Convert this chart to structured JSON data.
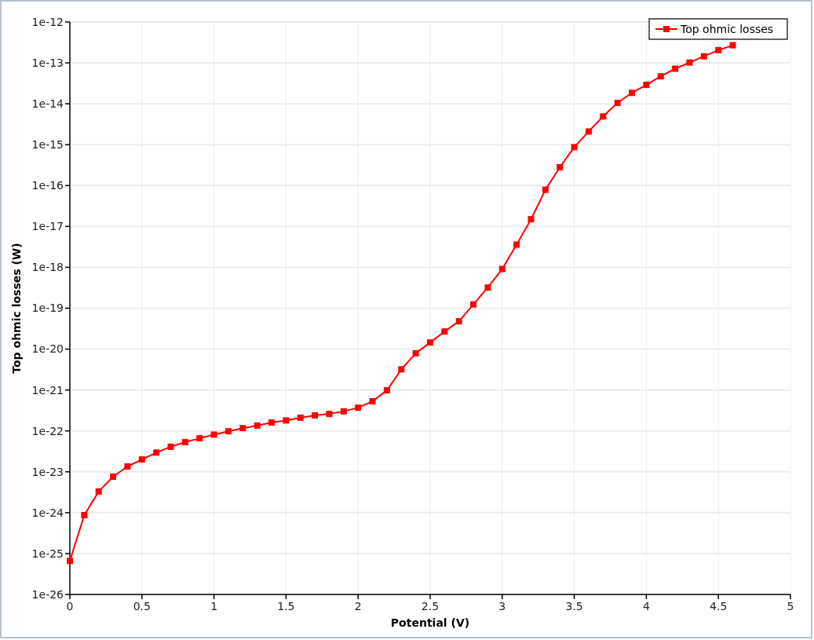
{
  "chart_data": {
    "type": "line",
    "xlabel": "Potential (V)",
    "ylabel": "Top ohmic losses (W)",
    "x": [
      0,
      0.1,
      0.2,
      0.3,
      0.4,
      0.5,
      0.6,
      0.7,
      0.8,
      0.9,
      1,
      1.1,
      1.2,
      1.3,
      1.4,
      1.5,
      1.6,
      1.7,
      1.8,
      1.9,
      2,
      2.1,
      2.2,
      2.3,
      2.4,
      2.5,
      2.6,
      2.7,
      2.8,
      2.9,
      3,
      3.1,
      3.2,
      3.3,
      3.4,
      3.5,
      3.6,
      3.7,
      3.8,
      3.9,
      4,
      4.1,
      4.2,
      4.3,
      4.4,
      4.5,
      4.6
    ],
    "series": [
      {
        "name": "Top ohmic losses",
        "color": "#ff0000",
        "values": [
          6.6e-26,
          8.7e-25,
          3.3e-24,
          7.6e-24,
          1.35e-23,
          2e-23,
          2.95e-23,
          4.1e-23,
          5.3e-23,
          6.6e-23,
          8.1e-23,
          9.8e-23,
          1.17e-22,
          1.35e-22,
          1.6e-22,
          1.8e-22,
          2.1e-22,
          2.4e-22,
          2.6e-22,
          3e-22,
          3.7e-22,
          5.3e-22,
          9.8e-22,
          3.2e-21,
          7.9e-21,
          1.45e-20,
          2.7e-20,
          4.8e-20,
          1.24e-19,
          3.2e-19,
          9.1e-19,
          3.6e-18,
          1.5e-17,
          7.9e-17,
          2.8e-16,
          8.7e-16,
          2.1e-15,
          4.9e-15,
          1.05e-14,
          1.85e-14,
          2.9e-14,
          4.7e-14,
          7.2e-14,
          1.02e-13,
          1.45e-13,
          2.05e-13,
          2.7e-13
        ]
      }
    ],
    "xlim": [
      0,
      5
    ],
    "xticks": [
      0,
      0.5,
      1,
      1.5,
      2,
      2.5,
      3,
      3.5,
      4,
      4.5,
      5
    ],
    "ylim": [
      1e-26,
      1e-12
    ],
    "yticks": [
      1e-26,
      1e-25,
      1e-24,
      1e-23,
      1e-22,
      1e-21,
      1e-20,
      1e-19,
      1e-18,
      1e-17,
      1e-16,
      1e-15,
      1e-14,
      1e-13,
      1e-12
    ],
    "log": "y",
    "grid": true,
    "legend": "top right",
    "marker": "square",
    "line_style": "solid"
  }
}
